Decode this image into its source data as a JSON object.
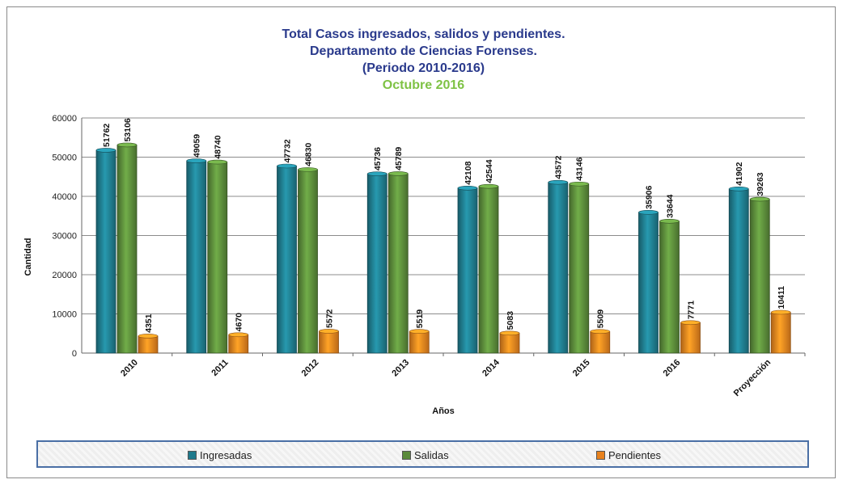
{
  "chart_data": {
    "type": "bar",
    "title_lines": [
      "Total Casos ingresados, salidos y pendientes.",
      "Departamento de Ciencias Forenses.",
      "(Periodo 2010-2016)"
    ],
    "subtitle": "Octubre 2016",
    "xlabel": "Años",
    "ylabel": "Cantidad",
    "ylim": [
      0,
      60000
    ],
    "yticks": [
      0,
      10000,
      20000,
      30000,
      40000,
      50000,
      60000
    ],
    "grid": true,
    "legend_position": "bottom",
    "categories": [
      "2010",
      "2011",
      "2012",
      "2013",
      "2014",
      "2015",
      "2016",
      "Proyección"
    ],
    "series": [
      {
        "name": "Ingresadas",
        "color": "#1f7a8c",
        "values": [
          51762,
          49059,
          47732,
          45736,
          42108,
          43572,
          35906,
          41902
        ]
      },
      {
        "name": "Salidas",
        "color": "#5a8a3a",
        "values": [
          53106,
          48740,
          46830,
          45789,
          42544,
          43146,
          33644,
          39263
        ]
      },
      {
        "name": "Pendientes",
        "color": "#e8821e",
        "values": [
          4351,
          4670,
          5572,
          5519,
          5083,
          5509,
          7771,
          10411
        ]
      }
    ]
  }
}
